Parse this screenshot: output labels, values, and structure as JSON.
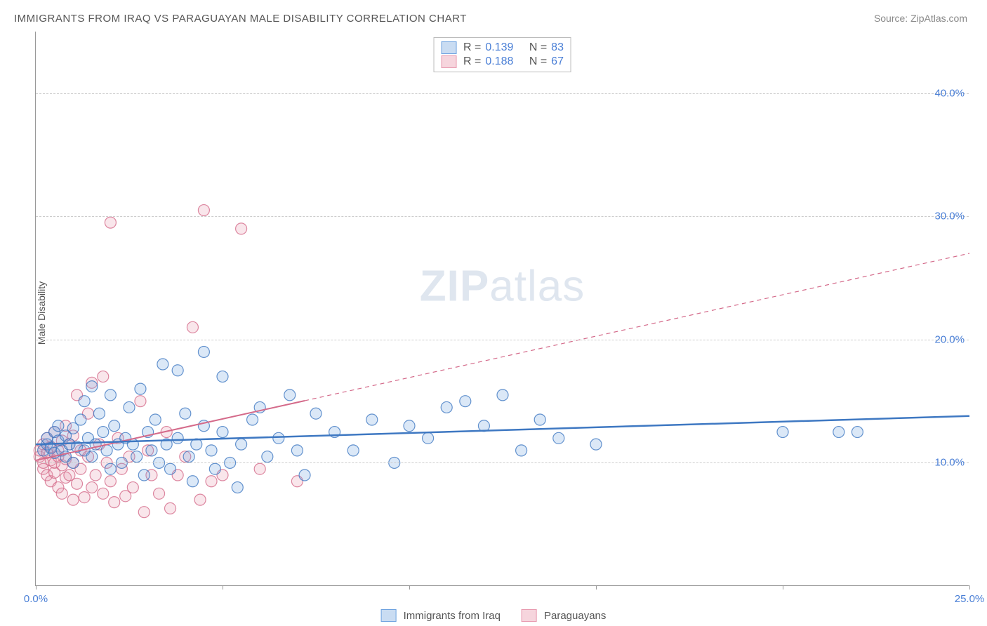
{
  "title": "IMMIGRANTS FROM IRAQ VS PARAGUAYAN MALE DISABILITY CORRELATION CHART",
  "source_label": "Source: ",
  "source_value": "ZipAtlas.com",
  "ylabel": "Male Disability",
  "watermark_zip": "ZIP",
  "watermark_atlas": "atlas",
  "chart": {
    "type": "scatter",
    "xlim": [
      0,
      25
    ],
    "ylim": [
      0,
      45
    ],
    "xticks": [
      0,
      5,
      10,
      15,
      20,
      25
    ],
    "x_labels": {
      "0": "0.0%",
      "25": "25.0%"
    },
    "y_gridlines": [
      10,
      20,
      30,
      40
    ],
    "y_labels": {
      "10": "10.0%",
      "20": "20.0%",
      "30": "30.0%",
      "40": "40.0%"
    },
    "grid_color": "#cccccc",
    "axis_color": "#999999",
    "background_color": "#ffffff",
    "tick_label_color": "#4a7fd6",
    "tick_label_fontsize": 15,
    "marker_radius": 8,
    "marker_fill_opacity": 0.25,
    "marker_stroke_opacity": 0.8,
    "marker_stroke_width": 1.2
  },
  "series": {
    "iraq": {
      "label": "Immigrants from Iraq",
      "color": "#6fa3e0",
      "stroke": "#3e78c2",
      "swatch_fill": "#c9dcf2",
      "swatch_border": "#6fa3e0",
      "R_label": "R =",
      "R": "0.139",
      "N_label": "N =",
      "N": "83",
      "trend": {
        "x1": 0,
        "y1": 11.5,
        "x2": 25,
        "y2": 13.8,
        "solid_end_x": 25,
        "width": 2.5,
        "dash_start_x": 25
      },
      "points": [
        [
          0.2,
          11.0
        ],
        [
          0.3,
          11.5
        ],
        [
          0.3,
          12.0
        ],
        [
          0.4,
          11.2
        ],
        [
          0.5,
          12.5
        ],
        [
          0.5,
          10.8
        ],
        [
          0.6,
          11.8
        ],
        [
          0.6,
          13.0
        ],
        [
          0.7,
          11.0
        ],
        [
          0.8,
          12.2
        ],
        [
          0.8,
          10.5
        ],
        [
          0.9,
          11.5
        ],
        [
          1.0,
          12.8
        ],
        [
          1.0,
          10.0
        ],
        [
          1.1,
          11.3
        ],
        [
          1.2,
          13.5
        ],
        [
          1.3,
          15.0
        ],
        [
          1.3,
          11.0
        ],
        [
          1.4,
          12.0
        ],
        [
          1.5,
          16.2
        ],
        [
          1.5,
          10.5
        ],
        [
          1.6,
          11.5
        ],
        [
          1.7,
          14.0
        ],
        [
          1.8,
          12.5
        ],
        [
          1.9,
          11.0
        ],
        [
          2.0,
          15.5
        ],
        [
          2.0,
          9.5
        ],
        [
          2.1,
          13.0
        ],
        [
          2.2,
          11.5
        ],
        [
          2.3,
          10.0
        ],
        [
          2.4,
          12.0
        ],
        [
          2.5,
          14.5
        ],
        [
          2.6,
          11.5
        ],
        [
          2.7,
          10.5
        ],
        [
          2.8,
          16.0
        ],
        [
          2.9,
          9.0
        ],
        [
          3.0,
          12.5
        ],
        [
          3.1,
          11.0
        ],
        [
          3.2,
          13.5
        ],
        [
          3.3,
          10.0
        ],
        [
          3.4,
          18.0
        ],
        [
          3.5,
          11.5
        ],
        [
          3.6,
          9.5
        ],
        [
          3.8,
          12.0
        ],
        [
          3.8,
          17.5
        ],
        [
          4.0,
          14.0
        ],
        [
          4.1,
          10.5
        ],
        [
          4.2,
          8.5
        ],
        [
          4.3,
          11.5
        ],
        [
          4.5,
          19.0
        ],
        [
          4.5,
          13.0
        ],
        [
          4.7,
          11.0
        ],
        [
          4.8,
          9.5
        ],
        [
          5.0,
          12.5
        ],
        [
          5.0,
          17.0
        ],
        [
          5.2,
          10.0
        ],
        [
          5.4,
          8.0
        ],
        [
          5.5,
          11.5
        ],
        [
          5.8,
          13.5
        ],
        [
          6.0,
          14.5
        ],
        [
          6.2,
          10.5
        ],
        [
          6.5,
          12.0
        ],
        [
          6.8,
          15.5
        ],
        [
          7.0,
          11.0
        ],
        [
          7.2,
          9.0
        ],
        [
          7.5,
          14.0
        ],
        [
          8.0,
          12.5
        ],
        [
          8.5,
          11.0
        ],
        [
          9.0,
          13.5
        ],
        [
          9.6,
          10.0
        ],
        [
          10.0,
          13.0
        ],
        [
          10.5,
          12.0
        ],
        [
          11.0,
          14.5
        ],
        [
          11.5,
          15.0
        ],
        [
          12.0,
          13.0
        ],
        [
          12.5,
          15.5
        ],
        [
          13.0,
          11.0
        ],
        [
          13.5,
          13.5
        ],
        [
          14.0,
          12.0
        ],
        [
          15.0,
          11.5
        ],
        [
          20.0,
          12.5
        ],
        [
          21.5,
          12.5
        ],
        [
          22.0,
          12.5
        ]
      ]
    },
    "paraguay": {
      "label": "Paraguayans",
      "color": "#e89bb0",
      "stroke": "#d46a8a",
      "swatch_fill": "#f6d5dd",
      "swatch_border": "#e89bb0",
      "R_label": "R =",
      "R": "0.188",
      "N_label": "N =",
      "N": "67",
      "trend": {
        "x1": 0,
        "y1": 10.2,
        "x2": 25,
        "y2": 27.0,
        "solid_end_x": 7.2,
        "width": 2,
        "dash_start_x": 7.2
      },
      "points": [
        [
          0.1,
          10.5
        ],
        [
          0.1,
          11.0
        ],
        [
          0.2,
          9.5
        ],
        [
          0.2,
          10.0
        ],
        [
          0.2,
          11.5
        ],
        [
          0.3,
          10.8
        ],
        [
          0.3,
          9.0
        ],
        [
          0.3,
          12.0
        ],
        [
          0.4,
          10.2
        ],
        [
          0.4,
          11.3
        ],
        [
          0.4,
          8.5
        ],
        [
          0.5,
          10.0
        ],
        [
          0.5,
          12.5
        ],
        [
          0.5,
          9.2
        ],
        [
          0.6,
          11.0
        ],
        [
          0.6,
          10.5
        ],
        [
          0.6,
          8.0
        ],
        [
          0.7,
          9.8
        ],
        [
          0.7,
          11.8
        ],
        [
          0.7,
          7.5
        ],
        [
          0.8,
          10.3
        ],
        [
          0.8,
          13.0
        ],
        [
          0.8,
          8.8
        ],
        [
          0.9,
          11.5
        ],
        [
          0.9,
          9.0
        ],
        [
          1.0,
          7.0
        ],
        [
          1.0,
          10.0
        ],
        [
          1.0,
          12.2
        ],
        [
          1.1,
          8.3
        ],
        [
          1.1,
          15.5
        ],
        [
          1.2,
          9.5
        ],
        [
          1.2,
          11.0
        ],
        [
          1.3,
          7.2
        ],
        [
          1.4,
          10.5
        ],
        [
          1.4,
          14.0
        ],
        [
          1.5,
          8.0
        ],
        [
          1.5,
          16.5
        ],
        [
          1.6,
          9.0
        ],
        [
          1.7,
          11.5
        ],
        [
          1.8,
          7.5
        ],
        [
          1.8,
          17.0
        ],
        [
          1.9,
          10.0
        ],
        [
          2.0,
          8.5
        ],
        [
          2.0,
          29.5
        ],
        [
          2.1,
          6.8
        ],
        [
          2.2,
          12.0
        ],
        [
          2.3,
          9.5
        ],
        [
          2.4,
          7.3
        ],
        [
          2.5,
          10.5
        ],
        [
          2.6,
          8.0
        ],
        [
          2.8,
          15.0
        ],
        [
          2.9,
          6.0
        ],
        [
          3.0,
          11.0
        ],
        [
          3.1,
          9.0
        ],
        [
          3.3,
          7.5
        ],
        [
          3.5,
          12.5
        ],
        [
          3.6,
          6.3
        ],
        [
          3.8,
          9.0
        ],
        [
          4.0,
          10.5
        ],
        [
          4.2,
          21.0
        ],
        [
          4.4,
          7.0
        ],
        [
          4.5,
          30.5
        ],
        [
          4.7,
          8.5
        ],
        [
          5.0,
          9.0
        ],
        [
          5.5,
          29.0
        ],
        [
          6.0,
          9.5
        ],
        [
          7.0,
          8.5
        ]
      ]
    }
  },
  "legend_stats_order": [
    "iraq",
    "paraguay"
  ]
}
